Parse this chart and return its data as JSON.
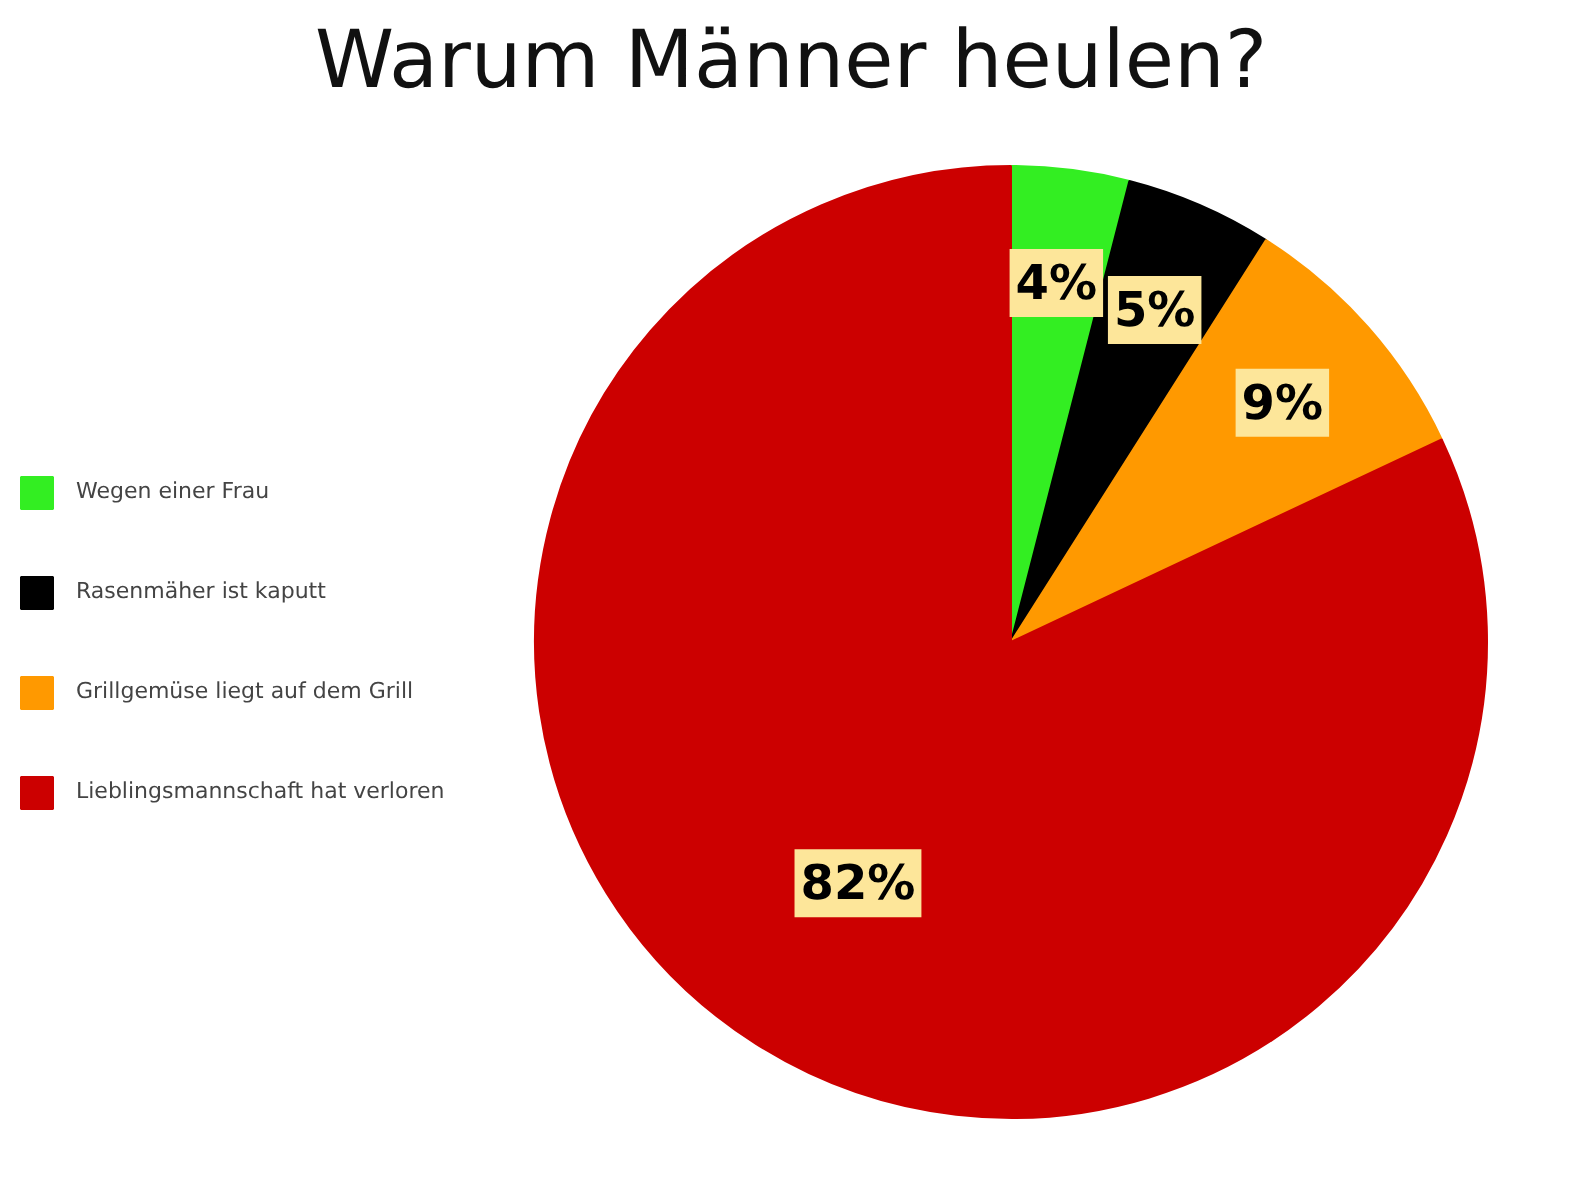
{
  "chart_data": {
    "type": "pie",
    "title": "Warum Männer heulen?",
    "categories": [
      "Wegen einer Frau",
      "Rasenmäher ist kaputt",
      "Grillgemüse liegt auf dem Grill",
      "Lieblingsmannschaft hat verloren"
    ],
    "values": [
      4,
      5,
      9,
      82
    ],
    "value_labels": [
      "4%",
      "5%",
      "9%",
      "82%"
    ],
    "colors": [
      "#33ee22",
      "#000000",
      "#ff9900",
      "#cc0000"
    ],
    "legend": "left"
  }
}
